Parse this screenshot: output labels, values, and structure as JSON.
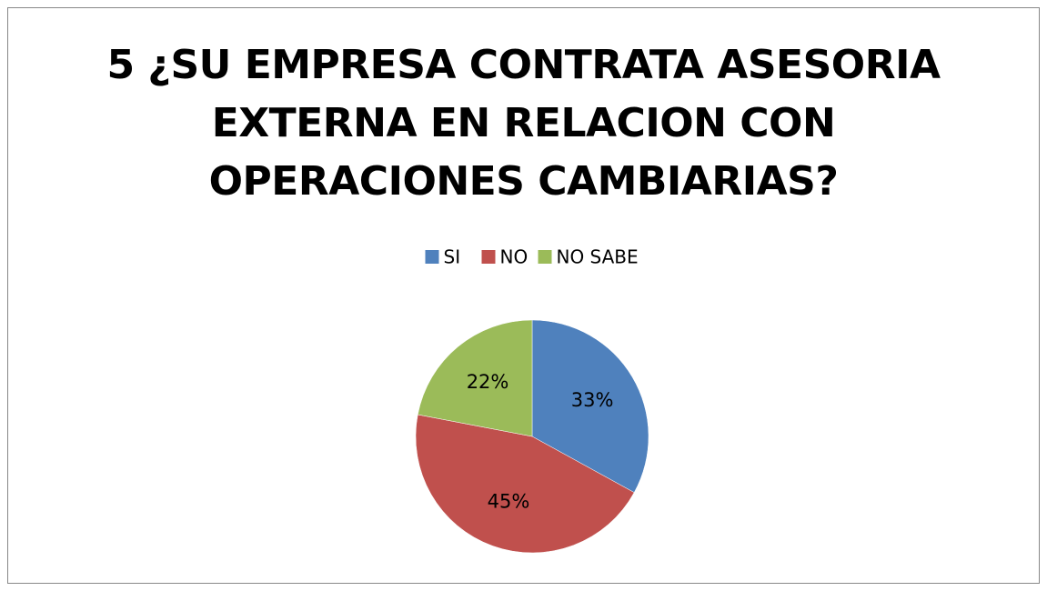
{
  "chart_data": {
    "type": "pie",
    "title": "5 ¿SU EMPRESA CONTRATA ASESORIA\nEXTERNA  EN RELACION CON\nOPERACIONES CAMBIARIAS?",
    "categories": [
      "SI",
      "NO",
      "NO SABE"
    ],
    "values": [
      33,
      45,
      22
    ],
    "value_labels": [
      "33%",
      "45%",
      "22%"
    ],
    "colors": [
      "#4f81bd",
      "#c0504d",
      "#9bbb59"
    ],
    "legend": "top"
  }
}
